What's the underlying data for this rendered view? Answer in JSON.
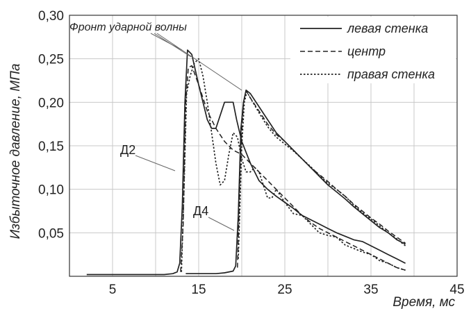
{
  "chart_data": {
    "type": "line",
    "xlabel": "Время, мс",
    "ylabel": "Избыточное давление, МПа",
    "xlim": [
      0,
      45
    ],
    "ylim": [
      0,
      0.3
    ],
    "xticks": [
      "5",
      "15",
      "25",
      "35",
      "45"
    ],
    "yticks": [
      "0,05",
      "0,10",
      "0,15",
      "0,20",
      "0,25",
      "0,30"
    ],
    "grid": true,
    "legend_position": "top-right",
    "annotations": {
      "shock_front": "Фронт ударной волны",
      "d2": "Д2",
      "d4": "Д4"
    },
    "series": [
      {
        "name": "левая стенка",
        "style": "solid",
        "segments": [
          {
            "x": [
              2,
              4,
              6,
              8,
              10,
              11,
              12,
              12.5,
              12.8,
              13.1,
              13.4,
              13.7,
              14.2,
              15,
              16,
              16.5,
              17,
              18,
              19,
              19.4,
              20,
              21,
              21.5,
              22,
              23,
              24,
              25,
              26,
              27,
              28,
              29,
              30,
              31,
              32,
              33,
              34,
              35,
              36,
              37,
              38,
              39
            ],
            "y": [
              0.002,
              0.002,
              0.002,
              0.002,
              0.002,
              0.002,
              0.003,
              0.005,
              0.015,
              0.08,
              0.2,
              0.26,
              0.255,
              0.22,
              0.18,
              0.17,
              0.17,
              0.2,
              0.2,
              0.18,
              0.155,
              0.13,
              0.12,
              0.11,
              0.1,
              0.092,
              0.085,
              0.078,
              0.07,
              0.065,
              0.06,
              0.055,
              0.05,
              0.046,
              0.042,
              0.04,
              0.035,
              0.03,
              0.025,
              0.02,
              0.015
            ]
          },
          {
            "x": [
              13.5,
              15,
              17,
              18,
              19,
              19.3,
              19.6,
              19.9,
              20.2,
              20.5,
              21,
              22,
              23,
              24,
              25,
              26,
              27,
              28,
              29,
              30,
              31,
              32,
              33,
              34,
              35,
              36,
              37,
              38,
              39
            ],
            "y": [
              0.003,
              0.003,
              0.003,
              0.004,
              0.006,
              0.012,
              0.07,
              0.17,
              0.2,
              0.214,
              0.21,
              0.195,
              0.18,
              0.165,
              0.155,
              0.145,
              0.135,
              0.125,
              0.115,
              0.105,
              0.097,
              0.089,
              0.08,
              0.072,
              0.064,
              0.056,
              0.05,
              0.042,
              0.037
            ]
          }
        ]
      },
      {
        "name": "центр",
        "style": "dashed",
        "segments": [
          {
            "x": [
              12.9,
              13.2,
              13.5,
              13.8,
              14.2,
              15,
              16,
              17,
              18,
              19,
              20,
              21,
              22,
              23,
              24,
              25,
              26,
              27,
              28,
              29,
              30,
              31,
              32,
              33,
              34,
              35,
              36,
              37,
              38,
              39
            ],
            "y": [
              0.005,
              0.06,
              0.2,
              0.24,
              0.242,
              0.22,
              0.19,
              0.17,
              0.155,
              0.145,
              0.14,
              0.13,
              0.12,
              0.11,
              0.1,
              0.09,
              0.08,
              0.07,
              0.062,
              0.055,
              0.05,
              0.045,
              0.04,
              0.035,
              0.03,
              0.025,
              0.02,
              0.015,
              0.01,
              0.007
            ]
          },
          {
            "x": [
              19.5,
              19.9,
              20.2,
              20.5,
              21,
              22,
              23,
              24,
              25,
              26,
              27,
              28,
              29,
              30,
              31,
              32,
              33,
              34,
              35,
              36,
              37,
              38,
              39
            ],
            "y": [
              0.01,
              0.15,
              0.2,
              0.213,
              0.205,
              0.19,
              0.175,
              0.163,
              0.155,
              0.145,
              0.135,
              0.125,
              0.117,
              0.109,
              0.1,
              0.092,
              0.083,
              0.075,
              0.067,
              0.06,
              0.052,
              0.045,
              0.038
            ]
          }
        ]
      },
      {
        "name": "правая стенка",
        "style": "dotted",
        "segments": [
          {
            "x": [
              13,
              13.3,
              13.6,
              14,
              14.5,
              15,
              15.5,
              16,
              16.5,
              17,
              17.5,
              18,
              18.5,
              19,
              19.5,
              20,
              20.5,
              21,
              21.5,
              22,
              22.5,
              23,
              23.5,
              24,
              25,
              26,
              27,
              28,
              29,
              30,
              31,
              32,
              33,
              34,
              35,
              36,
              37,
              38,
              39
            ],
            "y": [
              0.005,
              0.1,
              0.21,
              0.23,
              0.245,
              0.25,
              0.23,
              0.2,
              0.165,
              0.13,
              0.105,
              0.11,
              0.14,
              0.165,
              0.16,
              0.135,
              0.12,
              0.12,
              0.125,
              0.12,
              0.105,
              0.09,
              0.09,
              0.1,
              0.085,
              0.072,
              0.07,
              0.06,
              0.05,
              0.047,
              0.045,
              0.036,
              0.032,
              0.028,
              0.025,
              0.018,
              0.015,
              0.01,
              0.007
            ]
          },
          {
            "x": [
              19.6,
              20,
              20.3,
              20.6,
              21,
              22,
              23,
              24,
              25,
              26,
              27,
              28,
              29,
              30,
              31,
              32,
              33,
              34,
              35,
              36,
              37,
              38,
              39
            ],
            "y": [
              0.02,
              0.15,
              0.2,
              0.212,
              0.205,
              0.188,
              0.172,
              0.16,
              0.152,
              0.144,
              0.135,
              0.126,
              0.116,
              0.107,
              0.1,
              0.092,
              0.082,
              0.073,
              0.066,
              0.058,
              0.05,
              0.043,
              0.035
            ]
          }
        ]
      }
    ]
  }
}
